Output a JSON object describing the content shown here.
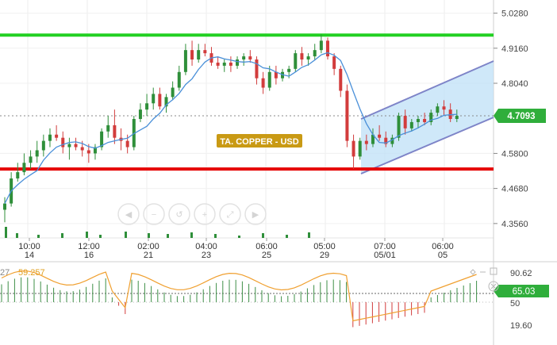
{
  "instrument": {
    "label": "TA. COPPER - USD"
  },
  "price_axis": {
    "ticks": [
      {
        "label": "5.0280",
        "value": 5.028
      },
      {
        "label": "4.9160",
        "value": 4.916
      },
      {
        "label": "4.8040",
        "value": 4.804
      },
      {
        "label": "4.5800",
        "value": 4.58
      },
      {
        "label": "4.4680",
        "value": 4.468
      },
      {
        "label": "4.3560",
        "value": 4.356
      }
    ],
    "current_price": "4.7093"
  },
  "time_axis": {
    "labels": [
      {
        "time": "10:00",
        "day": "14"
      },
      {
        "time": "12:00",
        "day": "16"
      },
      {
        "time": "02:00",
        "day": "21"
      },
      {
        "time": "04:00",
        "day": "23"
      },
      {
        "time": "06:00",
        "day": "25"
      },
      {
        "time": "05:00",
        "day": "29"
      },
      {
        "time": "07:00",
        "day": "05/01"
      },
      {
        "time": "06:00",
        "day": "05"
      }
    ]
  },
  "oscillator": {
    "period_fragment": "27",
    "value": "59.257",
    "current_badge": "65.03",
    "ticks": [
      "90.62",
      "50",
      "19.60"
    ]
  },
  "nav_icons": [
    "scroll-left-icon",
    "zoom-out-icon",
    "zoom-reset-icon",
    "zoom-in-icon",
    "zoom-fit-icon",
    "scroll-right-icon"
  ],
  "colors": {
    "bull": "#2f8f3a",
    "bear": "#d23c3c",
    "resistance": "#22d022",
    "support": "#e60000",
    "channel": "#7e84c8",
    "ma": "#4a90d9",
    "price_badge": "#2fae3b",
    "label_bg": "#c99a14",
    "osc_line": "#f0a030"
  },
  "chart_data": {
    "type": "candlestick",
    "resistance": 4.958,
    "support": 4.53,
    "ylim": [
      4.31,
      5.07
    ],
    "candles": [
      {
        "o": 4.4,
        "h": 4.44,
        "l": 4.36,
        "c": 4.42
      },
      {
        "o": 4.42,
        "h": 4.52,
        "l": 4.41,
        "c": 4.5
      },
      {
        "o": 4.5,
        "h": 4.55,
        "l": 4.49,
        "c": 4.52
      },
      {
        "o": 4.52,
        "h": 4.58,
        "l": 4.51,
        "c": 4.55
      },
      {
        "o": 4.55,
        "h": 4.59,
        "l": 4.53,
        "c": 4.57
      },
      {
        "o": 4.57,
        "h": 4.62,
        "l": 4.55,
        "c": 4.59
      },
      {
        "o": 4.59,
        "h": 4.64,
        "l": 4.57,
        "c": 4.62
      },
      {
        "o": 4.62,
        "h": 4.66,
        "l": 4.6,
        "c": 4.64
      },
      {
        "o": 4.64,
        "h": 4.67,
        "l": 4.62,
        "c": 4.63
      },
      {
        "o": 4.63,
        "h": 4.65,
        "l": 4.58,
        "c": 4.6
      },
      {
        "o": 4.6,
        "h": 4.63,
        "l": 4.56,
        "c": 4.61
      },
      {
        "o": 4.61,
        "h": 4.63,
        "l": 4.59,
        "c": 4.6
      },
      {
        "o": 4.6,
        "h": 4.62,
        "l": 4.57,
        "c": 4.59
      },
      {
        "o": 4.59,
        "h": 4.61,
        "l": 4.55,
        "c": 4.58
      },
      {
        "o": 4.58,
        "h": 4.61,
        "l": 4.56,
        "c": 4.6
      },
      {
        "o": 4.6,
        "h": 4.66,
        "l": 4.59,
        "c": 4.65
      },
      {
        "o": 4.65,
        "h": 4.7,
        "l": 4.63,
        "c": 4.67
      },
      {
        "o": 4.67,
        "h": 4.72,
        "l": 4.61,
        "c": 4.63
      },
      {
        "o": 4.63,
        "h": 4.66,
        "l": 4.59,
        "c": 4.62
      },
      {
        "o": 4.62,
        "h": 4.64,
        "l": 4.58,
        "c": 4.6
      },
      {
        "o": 4.6,
        "h": 4.7,
        "l": 4.59,
        "c": 4.69
      },
      {
        "o": 4.69,
        "h": 4.74,
        "l": 4.68,
        "c": 4.72
      },
      {
        "o": 4.72,
        "h": 4.77,
        "l": 4.7,
        "c": 4.74
      },
      {
        "o": 4.74,
        "h": 4.79,
        "l": 4.72,
        "c": 4.77
      },
      {
        "o": 4.77,
        "h": 4.79,
        "l": 4.72,
        "c": 4.73
      },
      {
        "o": 4.73,
        "h": 4.77,
        "l": 4.71,
        "c": 4.76
      },
      {
        "o": 4.76,
        "h": 4.81,
        "l": 4.75,
        "c": 4.79
      },
      {
        "o": 4.79,
        "h": 4.86,
        "l": 4.78,
        "c": 4.84
      },
      {
        "o": 4.84,
        "h": 4.93,
        "l": 4.83,
        "c": 4.91
      },
      {
        "o": 4.91,
        "h": 4.94,
        "l": 4.86,
        "c": 4.88
      },
      {
        "o": 4.88,
        "h": 4.93,
        "l": 4.87,
        "c": 4.91
      },
      {
        "o": 4.91,
        "h": 4.93,
        "l": 4.89,
        "c": 4.9
      },
      {
        "o": 4.9,
        "h": 4.92,
        "l": 4.86,
        "c": 4.87
      },
      {
        "o": 4.87,
        "h": 4.89,
        "l": 4.85,
        "c": 4.86
      },
      {
        "o": 4.86,
        "h": 4.88,
        "l": 4.84,
        "c": 4.87
      },
      {
        "o": 4.87,
        "h": 4.89,
        "l": 4.84,
        "c": 4.86
      },
      {
        "o": 4.86,
        "h": 4.89,
        "l": 4.85,
        "c": 4.88
      },
      {
        "o": 4.88,
        "h": 4.9,
        "l": 4.86,
        "c": 4.89
      },
      {
        "o": 4.89,
        "h": 4.91,
        "l": 4.87,
        "c": 4.88
      },
      {
        "o": 4.88,
        "h": 4.89,
        "l": 4.8,
        "c": 4.82
      },
      {
        "o": 4.82,
        "h": 4.84,
        "l": 4.77,
        "c": 4.79
      },
      {
        "o": 4.79,
        "h": 4.86,
        "l": 4.78,
        "c": 4.84
      },
      {
        "o": 4.84,
        "h": 4.86,
        "l": 4.8,
        "c": 4.82
      },
      {
        "o": 4.82,
        "h": 4.85,
        "l": 4.81,
        "c": 4.84
      },
      {
        "o": 4.84,
        "h": 4.86,
        "l": 4.82,
        "c": 4.85
      },
      {
        "o": 4.85,
        "h": 4.91,
        "l": 4.84,
        "c": 4.9
      },
      {
        "o": 4.9,
        "h": 4.92,
        "l": 4.86,
        "c": 4.88
      },
      {
        "o": 4.88,
        "h": 4.9,
        "l": 4.86,
        "c": 4.89
      },
      {
        "o": 4.89,
        "h": 4.93,
        "l": 4.88,
        "c": 4.91
      },
      {
        "o": 4.91,
        "h": 4.96,
        "l": 4.9,
        "c": 4.94
      },
      {
        "o": 4.94,
        "h": 4.95,
        "l": 4.88,
        "c": 4.89
      },
      {
        "o": 4.89,
        "h": 4.9,
        "l": 4.83,
        "c": 4.85
      },
      {
        "o": 4.85,
        "h": 4.86,
        "l": 4.76,
        "c": 4.78
      },
      {
        "o": 4.78,
        "h": 4.8,
        "l": 4.6,
        "c": 4.62
      },
      {
        "o": 4.62,
        "h": 4.64,
        "l": 4.53,
        "c": 4.57
      },
      {
        "o": 4.57,
        "h": 4.63,
        "l": 4.56,
        "c": 4.62
      },
      {
        "o": 4.62,
        "h": 4.64,
        "l": 4.59,
        "c": 4.61
      },
      {
        "o": 4.61,
        "h": 4.66,
        "l": 4.6,
        "c": 4.64
      },
      {
        "o": 4.64,
        "h": 4.67,
        "l": 4.62,
        "c": 4.63
      },
      {
        "o": 4.63,
        "h": 4.65,
        "l": 4.6,
        "c": 4.61
      },
      {
        "o": 4.61,
        "h": 4.64,
        "l": 4.6,
        "c": 4.63
      },
      {
        "o": 4.63,
        "h": 4.71,
        "l": 4.62,
        "c": 4.7
      },
      {
        "o": 4.7,
        "h": 4.72,
        "l": 4.64,
        "c": 4.66
      },
      {
        "o": 4.66,
        "h": 4.69,
        "l": 4.65,
        "c": 4.68
      },
      {
        "o": 4.68,
        "h": 4.7,
        "l": 4.66,
        "c": 4.69
      },
      {
        "o": 4.69,
        "h": 4.71,
        "l": 4.67,
        "c": 4.68
      },
      {
        "o": 4.68,
        "h": 4.72,
        "l": 4.67,
        "c": 4.71
      },
      {
        "o": 4.71,
        "h": 4.74,
        "l": 4.7,
        "c": 4.73
      },
      {
        "o": 4.73,
        "h": 4.75,
        "l": 4.7,
        "c": 4.72
      },
      {
        "o": 4.72,
        "h": 4.74,
        "l": 4.68,
        "c": 4.69
      },
      {
        "o": 4.69,
        "h": 4.72,
        "l": 4.68,
        "c": 4.7
      }
    ]
  }
}
